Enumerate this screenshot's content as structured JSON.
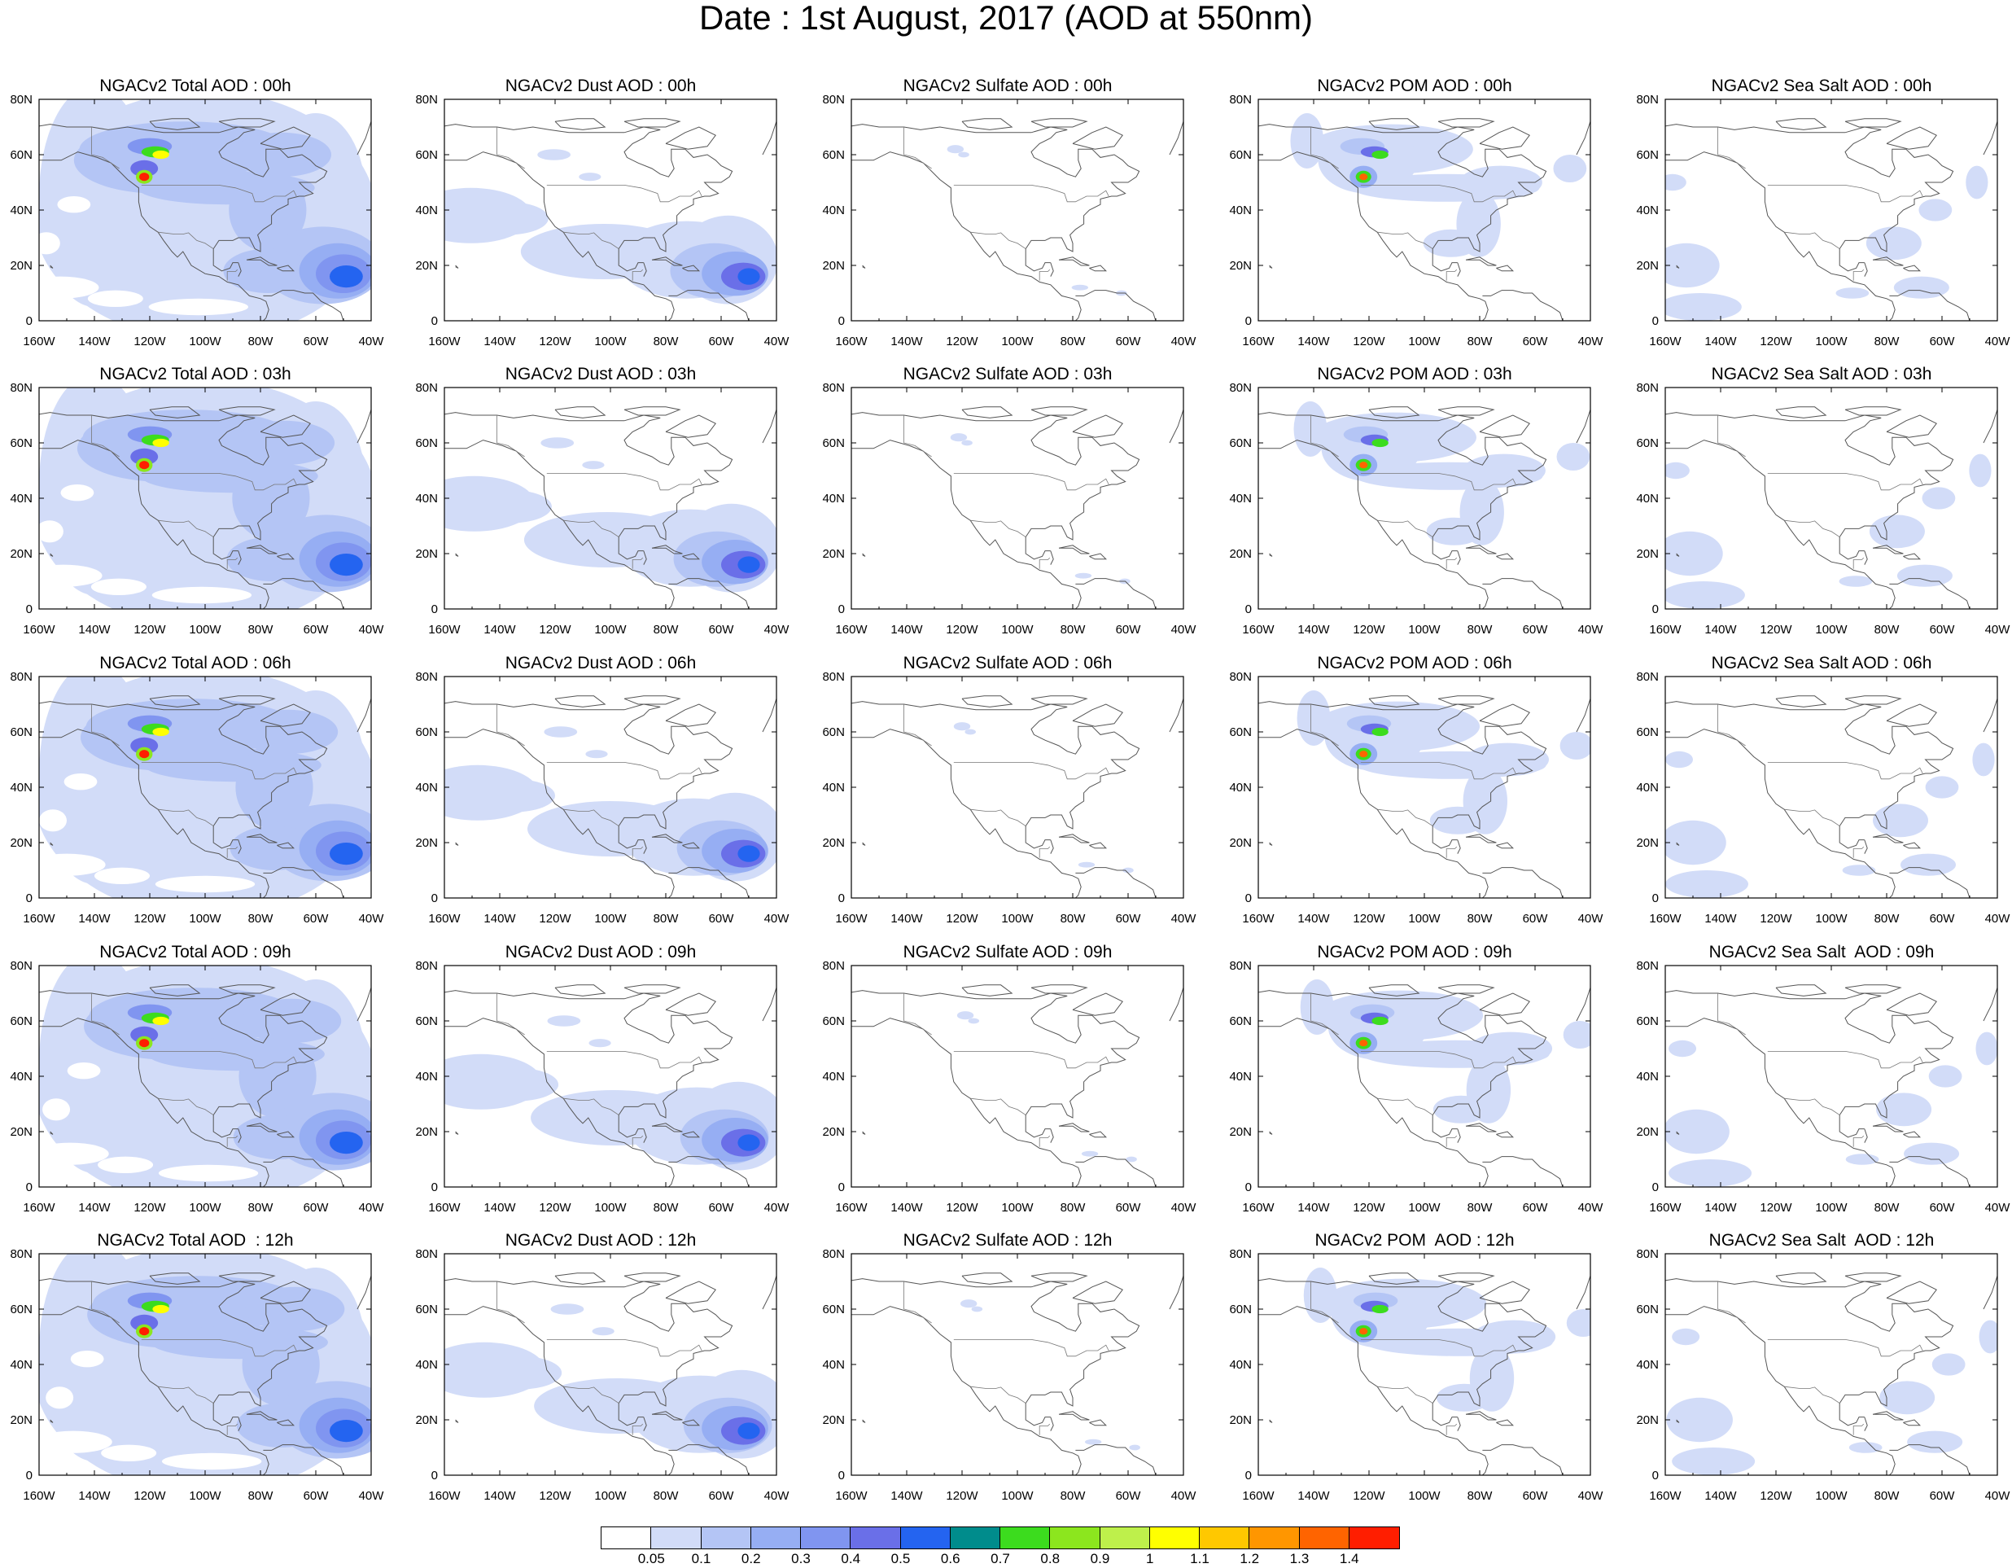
{
  "title": "Date : 1st August, 2017 (AOD at 550nm)",
  "map": {
    "lon_range": [
      -160,
      -40
    ],
    "lat_range": [
      0,
      80
    ],
    "x_ticks": [
      "160W",
      "140W",
      "120W",
      "100W",
      "80W",
      "60W",
      "40W"
    ],
    "y_ticks": [
      "0",
      "20N",
      "40N",
      "60N",
      "80N"
    ]
  },
  "rows": [
    {
      "hour": "00h",
      "titles": [
        "NGACv2 Total AOD : 00h",
        "NGACv2 Dust AOD : 00h",
        "NGACv2 Sulfate AOD : 00h",
        "NGACv2 POM AOD : 00h",
        "NGACv2 Sea Salt AOD : 00h"
      ]
    },
    {
      "hour": "03h",
      "titles": [
        "NGACv2 Total AOD : 03h",
        "NGACv2 Dust AOD : 03h",
        "NGACv2 Sulfate AOD : 03h",
        "NGACv2 POM AOD : 03h",
        "NGACv2 Sea Salt AOD : 03h"
      ]
    },
    {
      "hour": "06h",
      "titles": [
        "NGACv2 Total AOD : 06h",
        "NGACv2 Dust AOD : 06h",
        "NGACv2 Sulfate AOD : 06h",
        "NGACv2 POM AOD : 06h",
        "NGACv2 Sea Salt AOD : 06h"
      ]
    },
    {
      "hour": "09h",
      "titles": [
        "NGACv2 Total AOD : 09h",
        "NGACv2 Dust AOD : 09h",
        "NGACv2 Sulfate AOD : 09h",
        "NGACv2 POM AOD : 09h",
        "NGACv2 Sea Salt  AOD : 09h"
      ]
    },
    {
      "hour": "12h",
      "titles": [
        "NGACv2 Total AOD  : 12h",
        "NGACv2 Dust AOD : 12h",
        "NGACv2 Sulfate AOD : 12h",
        "NGACv2 POM  AOD : 12h",
        "NGACv2 Sea Salt  AOD : 12h"
      ]
    }
  ],
  "species": [
    "total",
    "dust",
    "sulfate",
    "pom",
    "seasalt"
  ],
  "colorbar": {
    "labels": [
      "0.05",
      "0.1",
      "0.2",
      "0.3",
      "0.4",
      "0.5",
      "0.6",
      "0.7",
      "0.8",
      "0.9",
      "1",
      "1.1",
      "1.2",
      "1.3",
      "1.4"
    ],
    "colors": [
      "#ffffff",
      "#d2dcf8",
      "#b4c5f5",
      "#96aef3",
      "#8095f0",
      "#6a6fe8",
      "#2464f0",
      "#008c8c",
      "#3cdc1e",
      "#8ce61e",
      "#bef04b",
      "#ffff00",
      "#ffc800",
      "#ff9600",
      "#ff6400",
      "#ff1e00"
    ]
  }
}
